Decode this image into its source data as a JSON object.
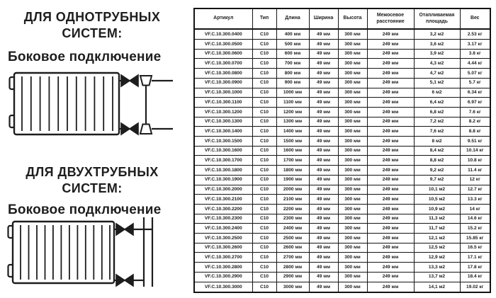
{
  "page": {
    "background": "#ffffff",
    "ink": "#1e1e1e"
  },
  "sections": [
    {
      "heading_lines": [
        "ДЛЯ ОДНОТРУБНЫХ",
        "СИСТЕМ:"
      ],
      "subheading": "Боковое подключение",
      "diagram": "radiator-one-pipe-side-connection"
    },
    {
      "heading_lines": [
        "ДЛЯ ДВУХТРУБНЫХ",
        "СИСТЕМ:"
      ],
      "subheading": "Боковое подключение",
      "diagram": "radiator-two-pipe-side-connection"
    }
  ],
  "table": {
    "headers": [
      "Артикул",
      "Тип",
      "Длина",
      "Ширина",
      "Высота",
      "Межосевое расстояние",
      "Отапливаемая площадь",
      "Вес"
    ],
    "rows": [
      [
        "VF.C.10.300.0400",
        "C10",
        "400 мм",
        "49 мм",
        "300 мм",
        "249 мм",
        "3,2 м2",
        "2.53 кг"
      ],
      [
        "VF.C.10.300.0500",
        "C10",
        "500 мм",
        "49 мм",
        "300 мм",
        "249 мм",
        "3,6 м2",
        "3.17 кг"
      ],
      [
        "VF.C.10.300.0600",
        "C10",
        "600 мм",
        "49 мм",
        "300 мм",
        "249 мм",
        "3,9 м2",
        "3.8 кг"
      ],
      [
        "VF.C.10.300.0700",
        "C10",
        "700 мм",
        "49 мм",
        "300 мм",
        "249 мм",
        "4,3 м2",
        "4.44 кг"
      ],
      [
        "VF.C.10.300.0800",
        "C10",
        "800 мм",
        "49 мм",
        "300 мм",
        "249 мм",
        "4,7 м2",
        "5.07 кг"
      ],
      [
        "VF.C.10.300.0900",
        "C10",
        "900 мм",
        "49 мм",
        "300 мм",
        "249 мм",
        "5,1 м2",
        "5.7 кг"
      ],
      [
        "VF.C.10.300.1000",
        "C10",
        "1000 мм",
        "49 мм",
        "300 мм",
        "249 мм",
        "6 м2",
        "6.34 кг"
      ],
      [
        "VF.C.10.300.1100",
        "C10",
        "1100 мм",
        "49 мм",
        "300 мм",
        "249 мм",
        "6,4 м2",
        "6.97 кг"
      ],
      [
        "VF.C.10.300.1200",
        "C10",
        "1200 мм",
        "49 мм",
        "300 мм",
        "249 мм",
        "6,8 м2",
        "7.6 кг"
      ],
      [
        "VF.C.10.300.1300",
        "C10",
        "1300 мм",
        "49 мм",
        "300 мм",
        "249 мм",
        "7,2 м2",
        "8.2 кг"
      ],
      [
        "VF.C.10.300.1400",
        "C10",
        "1400 мм",
        "49 мм",
        "300 мм",
        "249 мм",
        "7,6 м2",
        "8.8 кг"
      ],
      [
        "VF.C.10.300.1500",
        "C10",
        "1500 мм",
        "49 мм",
        "300 мм",
        "249 мм",
        "8 м2",
        "9.51 кг"
      ],
      [
        "VF.C.10.300.1600",
        "C10",
        "1600 мм",
        "49 мм",
        "300 мм",
        "249 мм",
        "8,4 м2",
        "10.14 кг"
      ],
      [
        "VF.C.10.300.1700",
        "C10",
        "1700 мм",
        "49 мм",
        "300 мм",
        "249 мм",
        "8,8 м2",
        "10.8 кг"
      ],
      [
        "VF.C.10.300.1800",
        "C10",
        "1800 мм",
        "49 мм",
        "300 мм",
        "249 мм",
        "9,2 м2",
        "11.4 кг"
      ],
      [
        "VF.C.10.300.1900",
        "C10",
        "1900 мм",
        "49 мм",
        "300 мм",
        "249 мм",
        "9,7 м2",
        "12 кг"
      ],
      [
        "VF.C.10.300.2000",
        "C10",
        "2000 мм",
        "49 мм",
        "300 мм",
        "249 мм",
        "10,1 м2",
        "12.7 кг"
      ],
      [
        "VF.C.10.300.2100",
        "C10",
        "2100 мм",
        "49 мм",
        "300 мм",
        "249 мм",
        "10,5 м2",
        "13.3 кг"
      ],
      [
        "VF.C.10.300.2200",
        "C10",
        "2200 мм",
        "49 мм",
        "300 мм",
        "249 мм",
        "10,9 м2",
        "14 кг"
      ],
      [
        "VF.C.10.300.2300",
        "C10",
        "2300 мм",
        "49 мм",
        "300 мм",
        "249 мм",
        "11,3 м2",
        "14.6 кг"
      ],
      [
        "VF.C.10.300.2400",
        "C10",
        "2400 мм",
        "49 мм",
        "300 мм",
        "249 мм",
        "11,7 м2",
        "15.2 кг"
      ],
      [
        "VF.C.10.300.2500",
        "C10",
        "2500 мм",
        "49 мм",
        "300 мм",
        "249 мм",
        "12,1 м2",
        "15.85 кг"
      ],
      [
        "VF.C.10.300.2600",
        "C10",
        "2600 мм",
        "49 мм",
        "300 мм",
        "249 мм",
        "12,5 м2",
        "16.5 кг"
      ],
      [
        "VF.C.10.300.2700",
        "C10",
        "2700 мм",
        "49 мм",
        "300 мм",
        "249 мм",
        "12,9 м2",
        "17.1 кг"
      ],
      [
        "VF.C.10.300.2800",
        "C10",
        "2800 мм",
        "49 мм",
        "300 мм",
        "249 мм",
        "13,3 м2",
        "17.8 кг"
      ],
      [
        "VF.C.10.300.2900",
        "C10",
        "2900 мм",
        "49 мм",
        "300 мм",
        "249 мм",
        "13,7 м2",
        "18.4 кг"
      ],
      [
        "VF.C.10.300.3000",
        "C10",
        "3000 мм",
        "49 мм",
        "300 мм",
        "249 мм",
        "14,1 м2",
        "19.02 кг"
      ]
    ]
  }
}
